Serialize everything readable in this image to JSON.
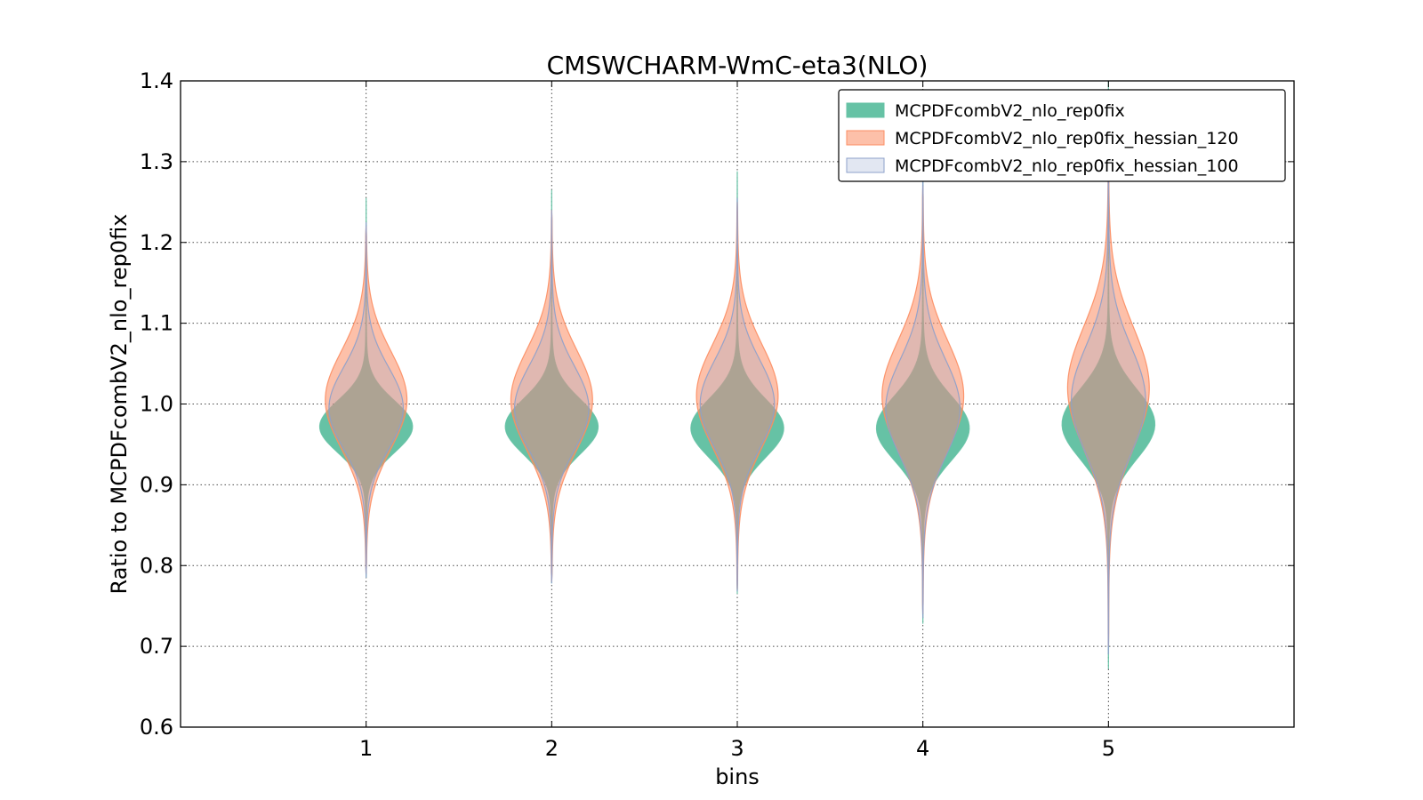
{
  "chart_data": {
    "type": "violin",
    "title": "CMSWCHARM-WmC-eta3(NLO)",
    "xlabel": "bins",
    "ylabel": "Ratio to MCPDFcombV2_nlo_rep0fix",
    "categories": [
      "1",
      "2",
      "3",
      "4",
      "5"
    ],
    "x": [
      1,
      2,
      3,
      4,
      5
    ],
    "xlim": [
      0,
      6
    ],
    "ylim": [
      0.6,
      1.4
    ],
    "yticks": [
      0.6,
      0.7,
      0.8,
      0.9,
      1.0,
      1.1,
      1.2,
      1.3,
      1.4
    ],
    "ytick_labels": [
      "0.6",
      "0.7",
      "0.8",
      "0.9",
      "1.0",
      "1.1",
      "1.2",
      "1.3",
      "1.4"
    ],
    "grid": true,
    "legend_position": "top-right",
    "series": [
      {
        "name": "MCPDFcombV2_nlo_rep0fix",
        "fill": "#66c2a5",
        "edge": "#66c2a5",
        "opacity": 1.0,
        "violins": [
          {
            "min": 0.785,
            "max": 1.255,
            "center": 0.972,
            "sigma": 0.032,
            "width": 0.25
          },
          {
            "min": 0.778,
            "max": 1.265,
            "center": 0.972,
            "sigma": 0.034,
            "width": 0.25
          },
          {
            "min": 0.765,
            "max": 1.288,
            "center": 0.97,
            "sigma": 0.036,
            "width": 0.25
          },
          {
            "min": 0.728,
            "max": 1.32,
            "center": 0.97,
            "sigma": 0.04,
            "width": 0.25
          },
          {
            "min": 0.672,
            "max": 1.4,
            "center": 0.975,
            "sigma": 0.043,
            "width": 0.25
          }
        ]
      },
      {
        "name": "MCPDFcombV2_nlo_rep0fix_hessian_120",
        "fill": "#fc8d62",
        "edge": "#fc8d62",
        "opacity": 0.55,
        "violins": [
          {
            "min": 0.79,
            "max": 1.22,
            "center": 1.005,
            "sigma": 0.06,
            "width": 0.22
          },
          {
            "min": 0.78,
            "max": 1.24,
            "center": 1.005,
            "sigma": 0.062,
            "width": 0.22
          },
          {
            "min": 0.77,
            "max": 1.25,
            "center": 1.01,
            "sigma": 0.063,
            "width": 0.22
          },
          {
            "min": 0.74,
            "max": 1.27,
            "center": 1.01,
            "sigma": 0.068,
            "width": 0.22
          },
          {
            "min": 0.7,
            "max": 1.3,
            "center": 1.02,
            "sigma": 0.075,
            "width": 0.22
          }
        ]
      },
      {
        "name": "MCPDFcombV2_nlo_rep0fix_hessian_100",
        "fill": "#8da0cb",
        "edge": "#8da0cb",
        "opacity": 0.25,
        "violins": [
          {
            "min": 0.785,
            "max": 1.225,
            "center": 0.995,
            "sigma": 0.05,
            "width": 0.2
          },
          {
            "min": 0.778,
            "max": 1.24,
            "center": 0.995,
            "sigma": 0.052,
            "width": 0.2
          },
          {
            "min": 0.768,
            "max": 1.255,
            "center": 1.0,
            "sigma": 0.054,
            "width": 0.2
          },
          {
            "min": 0.735,
            "max": 1.28,
            "center": 0.995,
            "sigma": 0.06,
            "width": 0.2
          },
          {
            "min": 0.69,
            "max": 1.32,
            "center": 1.005,
            "sigma": 0.066,
            "width": 0.2
          }
        ]
      }
    ]
  }
}
